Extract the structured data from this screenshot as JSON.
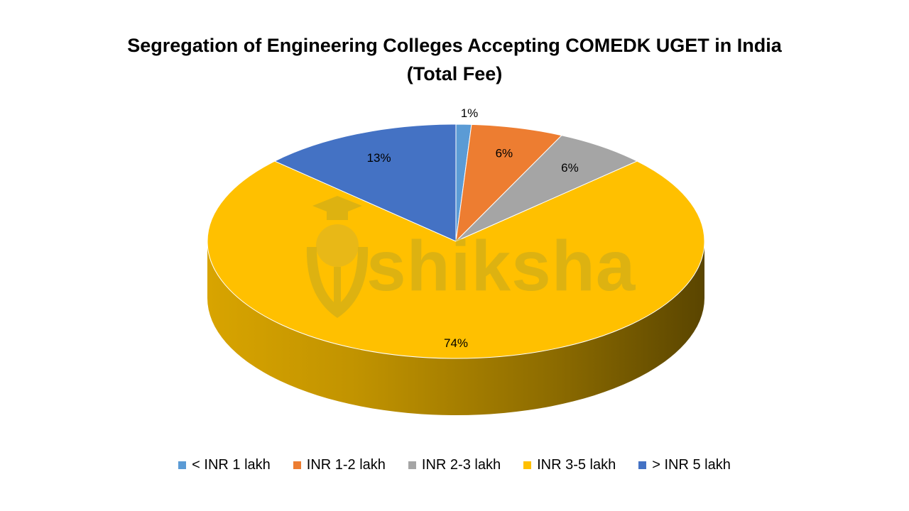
{
  "chart_data": {
    "type": "pie",
    "title_lines": [
      "Segregation of Engineering Colleges Accepting COMEDK UGET in India",
      "(Total Fee)"
    ],
    "slices": [
      {
        "label": "< INR 1 lakh",
        "value": 1,
        "display": "1%",
        "color": "#5b9bd5"
      },
      {
        "label": "INR 1-2 lakh",
        "value": 6,
        "display": "6%",
        "color": "#ed7d31"
      },
      {
        "label": "INR 2-3 lakh",
        "value": 6,
        "display": "6%",
        "color": "#a5a5a5"
      },
      {
        "label": "INR 3-5 lakh",
        "value": 74,
        "display": "74%",
        "color": "#ffc000"
      },
      {
        "label": "> INR 5 lakh",
        "value": 13,
        "display": "13%",
        "color": "#4472c4"
      }
    ],
    "legend_position": "bottom",
    "style": "3d"
  },
  "watermark": {
    "text": "shiksha",
    "icon": "graduation-pen-icon"
  }
}
